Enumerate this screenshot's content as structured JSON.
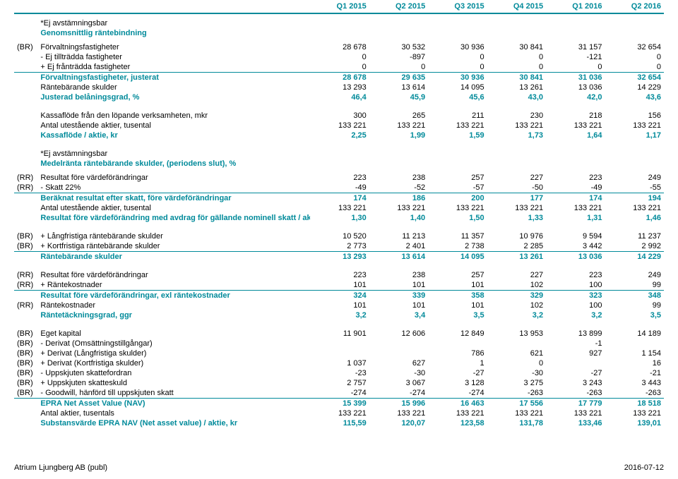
{
  "colors": {
    "accent": "#008a9a",
    "text": "#000000",
    "background": "#ffffff"
  },
  "columns": [
    "Q1 2015",
    "Q2 2015",
    "Q3 2015",
    "Q4 2015",
    "Q1 2016",
    "Q2 2016"
  ],
  "section1": {
    "note": "*Ej avstämningsbar",
    "title": "Genomsnittlig räntebindning"
  },
  "rows1": [
    {
      "tag": "(BR)",
      "label": "Förvaltningsfastigheter",
      "v": [
        "28 678",
        "30 532",
        "30 936",
        "30 841",
        "31 157",
        "32 654"
      ]
    },
    {
      "tag": "",
      "label": "- Ej tillträdda fastigheter",
      "v": [
        "0",
        "-897",
        "0",
        "0",
        "-121",
        "0"
      ]
    },
    {
      "tag": "",
      "label": "+ Ej frånträdda fastigheter",
      "v": [
        "0",
        "0",
        "0",
        "0",
        "0",
        "0"
      ]
    },
    {
      "tag": "",
      "label": "Förvaltningsfastigheter, justerat",
      "v": [
        "28 678",
        "29 635",
        "30 936",
        "30 841",
        "31 036",
        "32 654"
      ],
      "sum": true
    },
    {
      "tag": "",
      "label": "Räntebärande skulder",
      "v": [
        "13 293",
        "13 614",
        "14 095",
        "13 261",
        "13 036",
        "14 229"
      ]
    },
    {
      "tag": "",
      "label": "Justerad belåningsgrad, %",
      "v": [
        "46,4",
        "45,9",
        "45,6",
        "43,0",
        "42,0",
        "43,6"
      ],
      "sumnb": true
    }
  ],
  "rows2": [
    {
      "tag": "",
      "label": "Kassaflöde från den löpande verksamheten, mkr",
      "v": [
        "300",
        "265",
        "211",
        "230",
        "218",
        "156"
      ]
    },
    {
      "tag": "",
      "label": "Antal utestående aktier, tusental",
      "v": [
        "133 221",
        "133 221",
        "133 221",
        "133 221",
        "133 221",
        "133 221"
      ]
    },
    {
      "tag": "",
      "label": "Kassaflöde / aktie, kr",
      "v": [
        "2,25",
        "1,99",
        "1,59",
        "1,73",
        "1,64",
        "1,17"
      ],
      "sumnb": true
    }
  ],
  "section2": {
    "note": "*Ej avstämningsbar",
    "title": "Medelränta räntebärande skulder, (periodens slut), %"
  },
  "rows3": [
    {
      "tag": "(RR)",
      "label": "Resultat före värdeförändringar",
      "v": [
        "223",
        "238",
        "257",
        "227",
        "223",
        "249"
      ]
    },
    {
      "tag": "(RR)",
      "label": "- Skatt 22%",
      "v": [
        "-49",
        "-52",
        "-57",
        "-50",
        "-49",
        "-55"
      ]
    },
    {
      "tag": "",
      "label": "Beräknat resultat efter skatt, före värdeförändringar",
      "v": [
        "174",
        "186",
        "200",
        "177",
        "174",
        "194"
      ],
      "sum": true
    },
    {
      "tag": "",
      "label": "Antal utestående aktier, tusental",
      "v": [
        "133 221",
        "133 221",
        "133 221",
        "133 221",
        "133 221",
        "133 221"
      ]
    },
    {
      "tag": "",
      "label": "Resultat före värdeförändring med avdrag för gällande nominell skatt / aktie, kr",
      "v": [
        "1,30",
        "1,40",
        "1,50",
        "1,33",
        "1,31",
        "1,46"
      ],
      "sumnb": true
    }
  ],
  "rows4": [
    {
      "tag": "(BR)",
      "label": "+ Långfristiga räntebärande skulder",
      "v": [
        "10 520",
        "11 213",
        "11 357",
        "10 976",
        "9 594",
        "11 237"
      ]
    },
    {
      "tag": "(BR)",
      "label": "+ Kortfristiga räntebärande skulder",
      "v": [
        "2 773",
        "2 401",
        "2 738",
        "2 285",
        "3 442",
        "2 992"
      ]
    },
    {
      "tag": "",
      "label": "Räntebärande skulder",
      "v": [
        "13 293",
        "13 614",
        "14 095",
        "13 261",
        "13 036",
        "14 229"
      ],
      "sum": true
    }
  ],
  "rows5": [
    {
      "tag": "(RR)",
      "label": "Resultat före värdeförändringar",
      "v": [
        "223",
        "238",
        "257",
        "227",
        "223",
        "249"
      ]
    },
    {
      "tag": "(RR)",
      "label": "+ Räntekostnader",
      "v": [
        "101",
        "101",
        "101",
        "102",
        "100",
        "99"
      ]
    },
    {
      "tag": "",
      "label": "Resultat före värdeförändringar, exl räntekostnader",
      "v": [
        "324",
        "339",
        "358",
        "329",
        "323",
        "348"
      ],
      "sum": true
    },
    {
      "tag": "(RR)",
      "label": "Räntekostnader",
      "v": [
        "101",
        "101",
        "101",
        "102",
        "100",
        "99"
      ]
    },
    {
      "tag": "",
      "label": "Räntetäckningsgrad, ggr",
      "v": [
        "3,2",
        "3,4",
        "3,5",
        "3,2",
        "3,2",
        "3,5"
      ],
      "sumnb": true
    }
  ],
  "rows6": [
    {
      "tag": "(BR)",
      "label": "Eget kapital",
      "v": [
        "11 901",
        "12 606",
        "12 849",
        "13 953",
        "13 899",
        "14 189"
      ]
    },
    {
      "tag": "(BR)",
      "label": "- Derivat (Omsättningstillgångar)",
      "v": [
        "",
        "",
        "",
        "",
        "-1",
        ""
      ]
    },
    {
      "tag": "(BR)",
      "label": "+ Derivat (Långfristiga skulder)",
      "v": [
        "",
        "",
        "786",
        "621",
        "927",
        "1 154"
      ]
    },
    {
      "tag": "(BR)",
      "label": "+ Derivat (Kortfristiga skulder)",
      "v": [
        "1 037",
        "627",
        "1",
        "0",
        "",
        "16"
      ]
    },
    {
      "tag": "(BR)",
      "label": "- Uppskjuten skattefordran",
      "v": [
        "-23",
        "-30",
        "-27",
        "-30",
        "-27",
        "-21"
      ]
    },
    {
      "tag": "(BR)",
      "label": "+ Uppskjuten skatteskuld",
      "v": [
        "2 757",
        "3 067",
        "3 128",
        "3 275",
        "3 243",
        "3 443"
      ]
    },
    {
      "tag": "(BR)",
      "label": "- Goodwill, hänförd till uppskjuten skatt",
      "v": [
        "-274",
        "-274",
        "-274",
        "-263",
        "-263",
        "-263"
      ]
    },
    {
      "tag": "",
      "label": "EPRA Net Asset Value (NAV)",
      "v": [
        "15 399",
        "15 996",
        "16 463",
        "17 556",
        "17 779",
        "18 518"
      ],
      "sum": true
    },
    {
      "tag": "",
      "label": "Antal aktier, tusentals",
      "v": [
        "133 221",
        "133 221",
        "133 221",
        "133 221",
        "133 221",
        "133 221"
      ]
    },
    {
      "tag": "",
      "label": "Substansvärde EPRA NAV (Net asset value) / aktie, kr",
      "v": [
        "115,59",
        "120,07",
        "123,58",
        "131,78",
        "133,46",
        "139,01"
      ],
      "sumnb": true
    }
  ],
  "footer": {
    "left": "Atrium Ljungberg AB (publ)",
    "right": "2016-07-12"
  }
}
